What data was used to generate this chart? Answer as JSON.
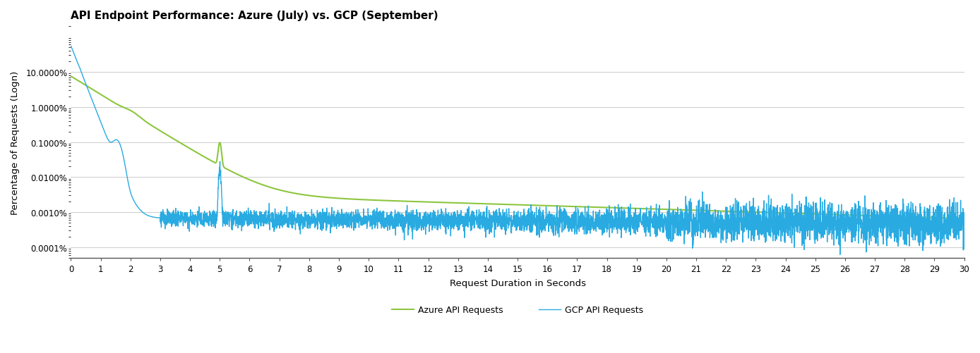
{
  "title": "API Endpoint Performance: Azure (July) vs. GCP (September)",
  "xlabel": "Request Duration in Seconds",
  "ylabel": "Percentage of Requests (Logn)",
  "legend_labels": [
    "GCP API Requests",
    "Azure API Requests"
  ],
  "gcp_color": "#29ABE2",
  "azure_color": "#8DC63F",
  "background_color": "#FFFFFF",
  "grid_color": "#CCCCCC",
  "xlim": [
    0,
    30
  ],
  "ytick_vals": [
    0.0001,
    0.001,
    0.01,
    0.1,
    1.0,
    10.0
  ],
  "ytick_labels": [
    "0.0001%",
    "0.0010%",
    "0.0100%",
    "0.1000%",
    "1.0000%",
    "10.0000%"
  ],
  "xticks": [
    0,
    1,
    2,
    3,
    4,
    5,
    6,
    7,
    8,
    9,
    10,
    11,
    12,
    13,
    14,
    15,
    16,
    17,
    18,
    19,
    20,
    21,
    22,
    23,
    24,
    25,
    26,
    27,
    28,
    29,
    30
  ]
}
